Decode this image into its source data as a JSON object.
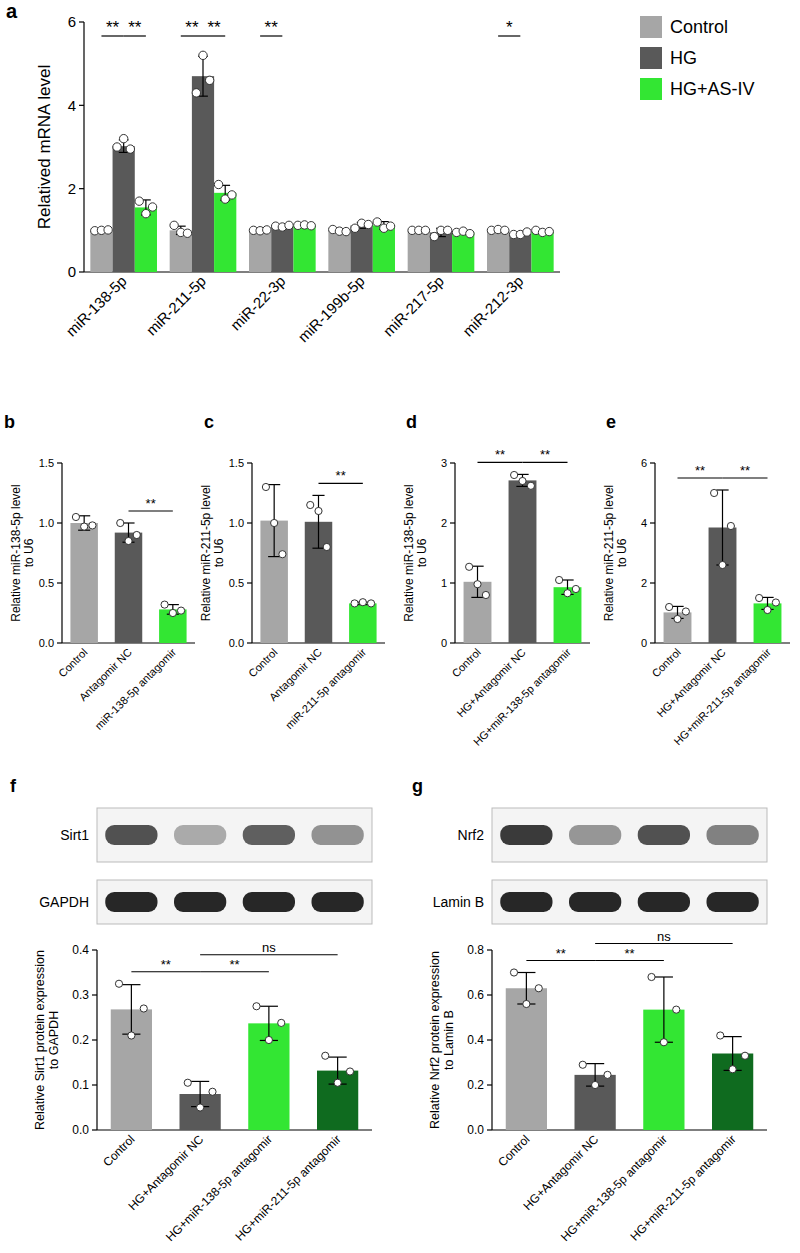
{
  "chart_data": [
    {
      "type": "bar",
      "title": "a",
      "y_label": "Relatived mRNA level",
      "categories": [
        "miR-138-5p",
        "miR-211-5p",
        "miR-22-3p",
        "miR-199b-5p",
        "miR-217-5p",
        "miR-212-3p"
      ],
      "series": [
        {
          "name": "Control",
          "color": "#a6a6a6",
          "values": [
            1.0,
            1.0,
            1.0,
            1.0,
            1.0,
            1.0
          ],
          "errors": [
            0.02,
            0.1,
            0.02,
            0.04,
            0.01,
            0.02
          ],
          "points": [
            [
              0.99,
              1.0,
              1.01
            ],
            [
              1.12,
              0.95,
              0.93
            ],
            [
              1.0,
              0.99,
              1.01
            ],
            [
              1.02,
              0.98,
              0.97
            ],
            [
              1.0,
              1.0,
              1.0
            ],
            [
              1.0,
              1.02,
              1.0
            ]
          ]
        },
        {
          "name": "HG",
          "color": "#595959",
          "values": [
            3.02,
            4.7,
            1.1,
            1.12,
            0.95,
            0.92
          ],
          "errors": [
            0.15,
            0.48,
            0.04,
            0.07,
            0.1,
            0.04
          ],
          "points": [
            [
              3.0,
              3.2,
              2.95
            ],
            [
              4.3,
              5.2,
              4.6
            ],
            [
              1.1,
              1.08,
              1.12
            ],
            [
              1.05,
              1.17,
              1.14
            ],
            [
              0.85,
              1.0,
              1.0
            ],
            [
              0.9,
              0.9,
              0.96
            ]
          ]
        },
        {
          "name": "HG+AS-IV",
          "color": "#33e633",
          "values": [
            1.55,
            1.9,
            1.12,
            1.12,
            0.95,
            0.97
          ],
          "errors": [
            0.18,
            0.18,
            0.03,
            0.09,
            0.04,
            0.04
          ],
          "points": [
            [
              1.7,
              1.4,
              1.56
            ],
            [
              2.1,
              1.75,
              1.85
            ],
            [
              1.12,
              1.13,
              1.11
            ],
            [
              1.2,
              1.05,
              1.1
            ],
            [
              0.95,
              0.98,
              0.92
            ],
            [
              1.0,
              0.95,
              0.97
            ]
          ]
        }
      ],
      "ylim": [
        0,
        6
      ],
      "yticks": [
        0,
        2,
        4,
        6
      ],
      "legend": "top-right",
      "significance": [
        {
          "category": "miR-138-5p",
          "between": [
            "Control",
            "HG"
          ],
          "label": "**"
        },
        {
          "category": "miR-138-5p",
          "between": [
            "HG",
            "HG+AS-IV"
          ],
          "label": "**"
        },
        {
          "category": "miR-211-5p",
          "between": [
            "Control",
            "HG"
          ],
          "label": "**"
        },
        {
          "category": "miR-211-5p",
          "between": [
            "HG",
            "HG+AS-IV"
          ],
          "label": "**"
        },
        {
          "category": "miR-22-3p",
          "between": [
            "Control",
            "HG"
          ],
          "label": "**"
        },
        {
          "category": "miR-212-3p",
          "between": [
            "Control",
            "HG"
          ],
          "label": "*"
        }
      ]
    },
    {
      "type": "bar",
      "title": "b",
      "y_label": "Relative miR-138-5p level\nto U6",
      "categories": [
        "Control",
        "Antagomir NC",
        "miR-138-5p antagomir"
      ],
      "values": [
        1.0,
        0.92,
        0.28
      ],
      "errors": [
        0.06,
        0.08,
        0.04
      ],
      "points": [
        [
          1.05,
          0.97,
          0.98
        ],
        [
          1.0,
          0.85,
          0.9
        ],
        [
          0.32,
          0.25,
          0.27
        ]
      ],
      "colors": [
        "#a6a6a6",
        "#595959",
        "#33e633"
      ],
      "ylim": [
        0,
        1.5
      ],
      "yticks": [
        {
          "value": 0,
          "label": "0.0"
        },
        0.5,
        {
          "value": 1,
          "label": "1.0"
        },
        1.5
      ],
      "significance": [
        {
          "between": [
            "Antagomir NC",
            "miR-138-5p antagomir"
          ],
          "label": "**"
        }
      ]
    },
    {
      "type": "bar",
      "title": "c",
      "y_label": "Relative miR-211-5p level\nto U6",
      "categories": [
        "Control",
        "Antagomir NC",
        "miR-211-5p antagomir"
      ],
      "values": [
        1.02,
        1.01,
        0.33
      ],
      "errors": [
        0.3,
        0.22,
        0.01
      ],
      "points": [
        [
          1.3,
          1.0,
          0.74
        ],
        [
          1.15,
          1.1,
          0.8
        ],
        [
          0.33,
          0.34,
          0.33
        ]
      ],
      "colors": [
        "#a6a6a6",
        "#595959",
        "#33e633"
      ],
      "ylim": [
        0,
        1.5
      ],
      "yticks": [
        {
          "value": 0,
          "label": "0.0"
        },
        0.5,
        {
          "value": 1,
          "label": "1.0"
        },
        1.5
      ],
      "significance": [
        {
          "between": [
            "Antagomir NC",
            "miR-211-5p antagomir"
          ],
          "label": "**"
        }
      ]
    },
    {
      "type": "bar",
      "title": "d",
      "y_label": "Relative miR-138-5p level\nto U6",
      "categories": [
        "Control",
        "HG+Antagomir NC",
        "HG+miR-138-5p antagomir"
      ],
      "values": [
        1.02,
        2.71,
        0.93
      ],
      "errors": [
        0.26,
        0.1,
        0.12
      ],
      "points": [
        [
          1.27,
          0.98,
          0.8
        ],
        [
          2.8,
          2.7,
          2.62
        ],
        [
          1.05,
          0.83,
          0.9
        ]
      ],
      "colors": [
        "#a6a6a6",
        "#595959",
        "#33e633"
      ],
      "ylim": [
        0,
        3
      ],
      "yticks": [
        0,
        1,
        2,
        3
      ],
      "significance": [
        {
          "between": [
            "Control",
            "HG+Antagomir NC"
          ],
          "label": "**"
        },
        {
          "between": [
            "HG+Antagomir NC",
            "HG+miR-138-5p antagomir"
          ],
          "label": "**"
        }
      ]
    },
    {
      "type": "bar",
      "title": "e",
      "y_label": "Relative miR-211-5p level\nto U6",
      "categories": [
        "Control",
        "HG+Antagomir NC",
        "HG+miR-211-5p antagomir"
      ],
      "values": [
        1.02,
        3.85,
        1.32
      ],
      "errors": [
        0.2,
        1.25,
        0.2
      ],
      "points": [
        [
          1.2,
          0.8,
          1.05
        ],
        [
          5.0,
          2.6,
          3.9
        ],
        [
          1.5,
          1.1,
          1.35
        ]
      ],
      "colors": [
        "#a6a6a6",
        "#595959",
        "#33e633"
      ],
      "ylim": [
        0,
        6
      ],
      "yticks": [
        0,
        2,
        4,
        6
      ],
      "significance": [
        {
          "between": [
            "Control",
            "HG+Antagomir NC"
          ],
          "label": "**"
        },
        {
          "between": [
            "HG+Antagomir NC",
            "HG+miR-211-5p antagomir"
          ],
          "label": "**"
        }
      ]
    },
    {
      "type": "bar",
      "title": "f",
      "y_label": "Relative Sirt1 protein expression\nto GAPDH",
      "bands": [
        "Sirt1",
        "GAPDH"
      ],
      "categories": [
        "Control",
        "HG+Antagomir NC",
        "HG+miR-138-5p antagomir",
        "HG+miR-211-5p antagomir"
      ],
      "values": [
        0.268,
        0.08,
        0.237,
        0.132
      ],
      "errors": [
        0.055,
        0.028,
        0.038,
        0.03
      ],
      "points": [
        [
          0.325,
          0.21,
          0.27
        ],
        [
          0.105,
          0.05,
          0.085
        ],
        [
          0.275,
          0.2,
          0.238
        ],
        [
          0.165,
          0.105,
          0.13
        ]
      ],
      "colors": [
        "#a6a6a6",
        "#595959",
        "#33e633",
        "#0f6b1f"
      ],
      "ylim": [
        0,
        0.4
      ],
      "yticks": [
        {
          "value": 0,
          "label": "0.0"
        },
        0.1,
        0.2,
        0.3,
        0.4
      ],
      "significance": [
        {
          "between": [
            "Control",
            "HG+Antagomir NC"
          ],
          "label": "**"
        },
        {
          "between": [
            "HG+Antagomir NC",
            "HG+miR-138-5p antagomir"
          ],
          "label": "**"
        },
        {
          "between": [
            "HG+Antagomir NC",
            "HG+miR-211-5p antagomir"
          ],
          "label": "ns"
        }
      ]
    },
    {
      "type": "bar",
      "title": "g",
      "y_label": "Relative Nrf2 protein expression\nto Lamin B",
      "bands": [
        "Nrf2",
        "Lamin B"
      ],
      "categories": [
        "Control",
        "HG+Antagomir NC",
        "HG+miR-138-5p antagomir",
        "HG+miR-211-5p antagomir"
      ],
      "values": [
        0.63,
        0.245,
        0.535,
        0.34
      ],
      "errors": [
        0.07,
        0.05,
        0.145,
        0.075
      ],
      "points": [
        [
          0.7,
          0.56,
          0.63
        ],
        [
          0.29,
          0.2,
          0.245
        ],
        [
          0.68,
          0.39,
          0.535
        ],
        [
          0.42,
          0.27,
          0.33
        ]
      ],
      "colors": [
        "#a6a6a6",
        "#595959",
        "#33e633",
        "#0f6b1f"
      ],
      "ylim": [
        0,
        0.8
      ],
      "yticks": [
        {
          "value": 0,
          "label": "0.0"
        },
        0.2,
        0.4,
        0.6,
        0.8
      ],
      "significance": [
        {
          "between": [
            "Control",
            "HG+Antagomir NC"
          ],
          "label": "**"
        },
        {
          "between": [
            "HG+Antagomir NC",
            "HG+miR-138-5p antagomir"
          ],
          "label": "**"
        },
        {
          "between": [
            "HG+Antagomir NC",
            "HG+miR-211-5p antagomir"
          ],
          "label": "ns"
        }
      ]
    }
  ]
}
